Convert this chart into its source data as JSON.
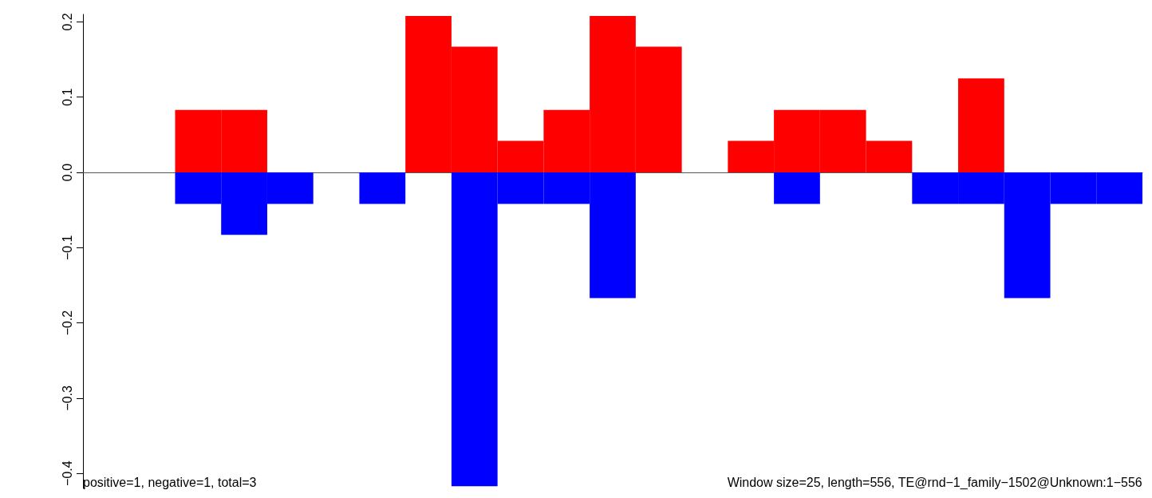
{
  "chart_data": {
    "type": "bar",
    "tick_labels": "y",
    "categories": [
      null,
      null,
      null,
      null,
      null,
      null,
      null,
      null,
      null,
      null,
      null,
      null,
      null,
      null,
      null,
      null,
      null,
      null,
      null,
      null,
      null,
      null,
      null
    ],
    "series": [
      {
        "color": "#ff0000",
        "values": [
          0,
          0,
          0.083,
          0.083,
          0,
          0,
          0,
          0.208,
          0.167,
          0.042,
          0.083,
          0.208,
          0.167,
          0,
          0.042,
          0.083,
          0.083,
          0.042,
          0,
          0.125,
          0,
          0,
          0
        ]
      },
      {
        "color": "#0000ff",
        "values": [
          0,
          0,
          -0.042,
          -0.083,
          -0.042,
          0,
          -0.042,
          0,
          -0.417,
          -0.042,
          -0.042,
          -0.167,
          0,
          0,
          0,
          -0.042,
          0,
          0,
          -0.042,
          -0.042,
          -0.167,
          -0.042,
          -0.042
        ]
      }
    ],
    "ylim": [
      -0.42,
      0.21
    ],
    "yticks": [
      -0.4,
      -0.3,
      -0.2,
      -0.1,
      {
        "value": 0,
        "label": "0.0"
      },
      0.1,
      0.2
    ],
    "annotations": [
      "positive=1, negative=1, total=3",
      "Window size=25, length=556, TE@rnd−1_family−1502@Unknown:1−556"
    ]
  }
}
